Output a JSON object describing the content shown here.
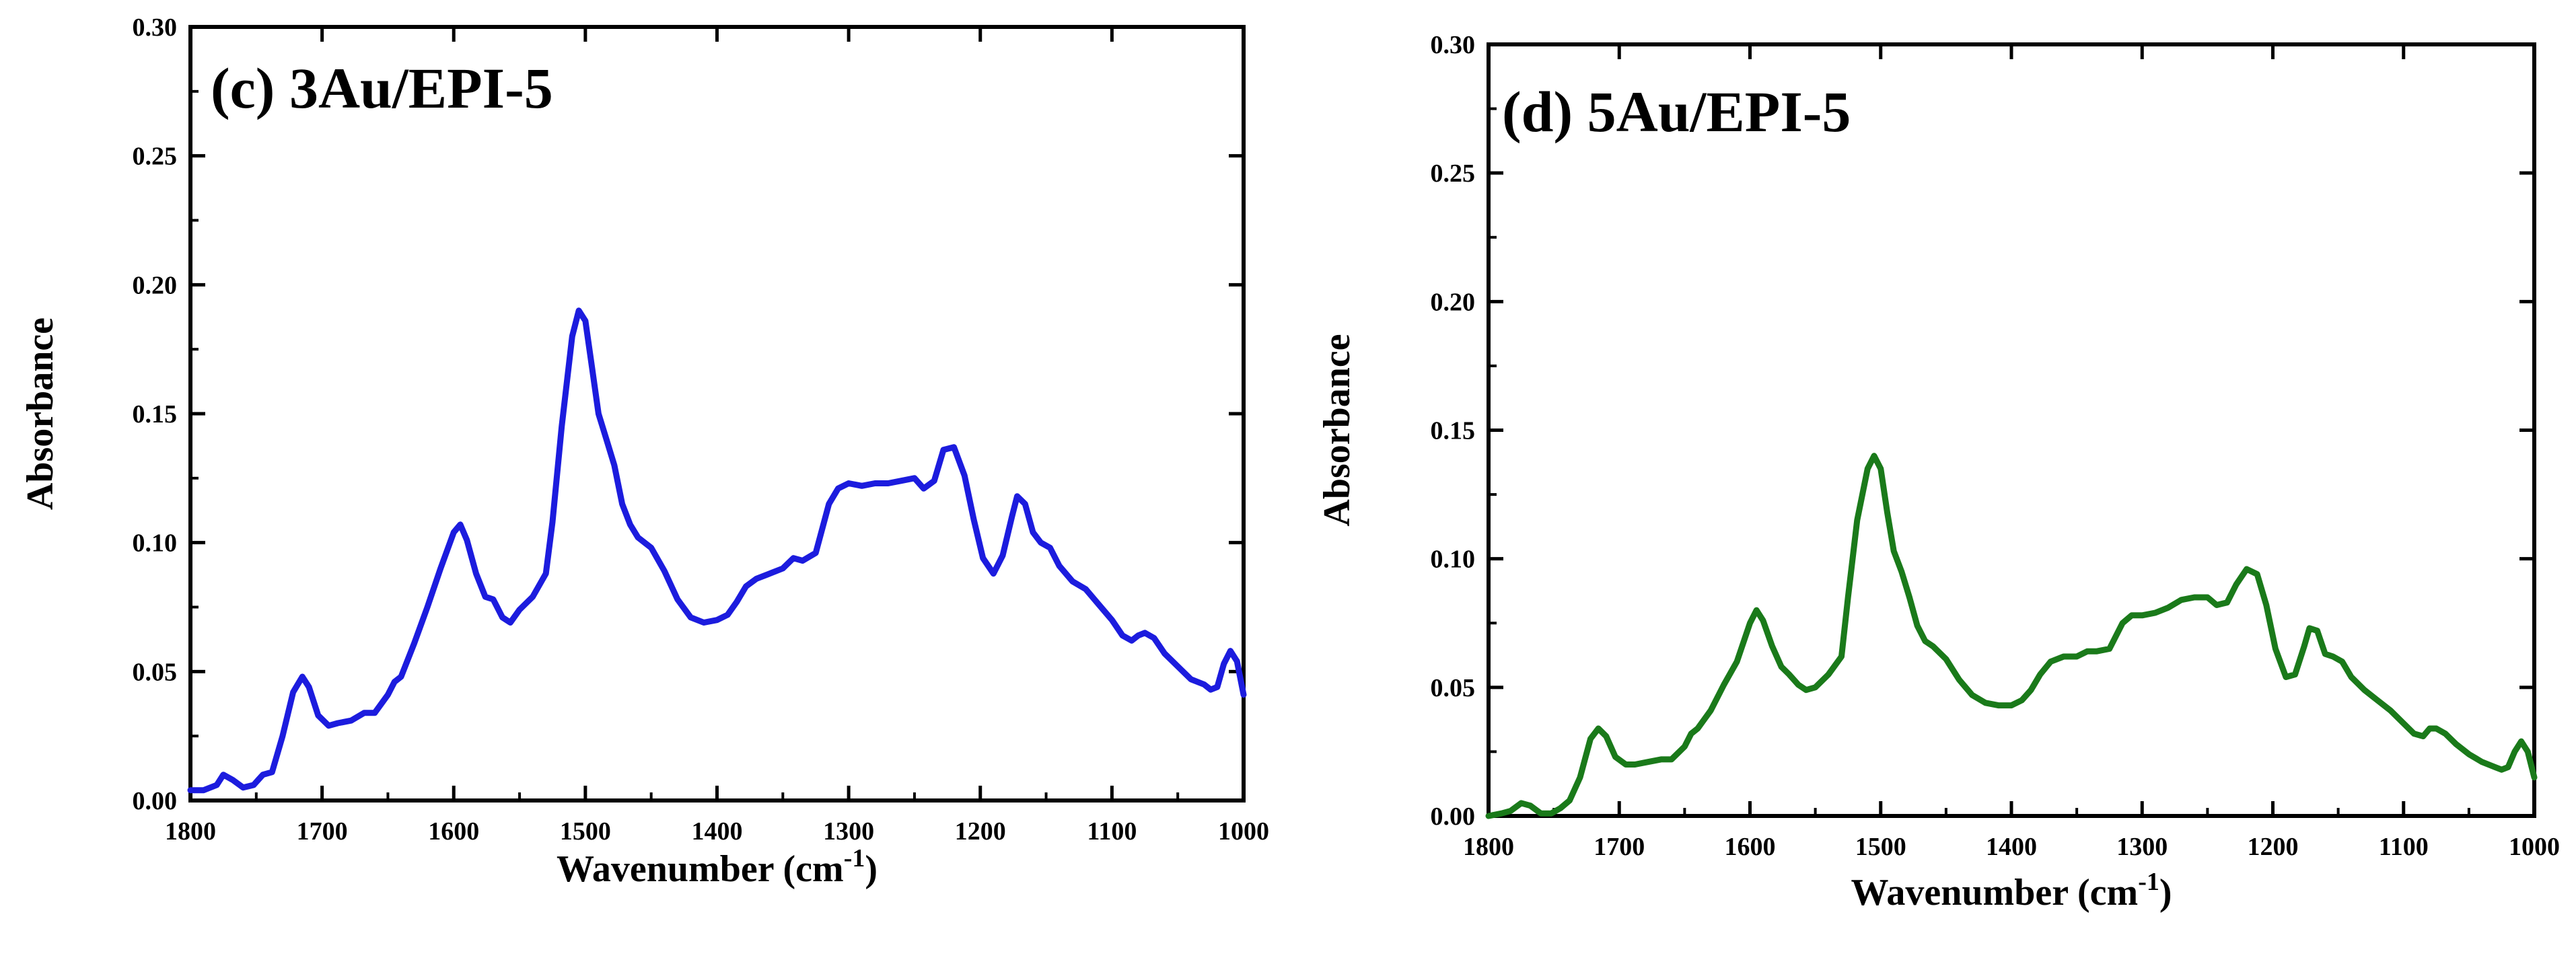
{
  "chart_data": [
    {
      "type": "line",
      "panel": "c",
      "title": "(c) 3Au/EPI-5",
      "xlabel": "Wavenumber",
      "xlabel_unit": "(cm-1)",
      "ylabel": "Absorbance",
      "xlim": [
        1800,
        1000
      ],
      "ylim": [
        0,
        0.3
      ],
      "xticks": [
        "1800",
        "1700",
        "1600",
        "1500",
        "1400",
        "1300",
        "1200",
        "1100",
        "1000"
      ],
      "yticks": [
        "0.00",
        "0.05",
        "0.10",
        "0.15",
        "0.20",
        "0.25",
        "0.30"
      ],
      "color": "#1c1cde",
      "series": [
        {
          "name": "3Au/EPI-5",
          "x": [
            1800,
            1790,
            1780,
            1775,
            1768,
            1760,
            1752,
            1745,
            1738,
            1730,
            1722,
            1715,
            1710,
            1703,
            1695,
            1688,
            1678,
            1668,
            1660,
            1650,
            1645,
            1640,
            1630,
            1620,
            1610,
            1600,
            1595,
            1590,
            1583,
            1576,
            1570,
            1563,
            1557,
            1550,
            1540,
            1530,
            1525,
            1518,
            1510,
            1505,
            1500,
            1495,
            1490,
            1484,
            1478,
            1472,
            1466,
            1460,
            1450,
            1440,
            1430,
            1420,
            1410,
            1400,
            1392,
            1385,
            1378,
            1370,
            1360,
            1350,
            1342,
            1335,
            1325,
            1315,
            1308,
            1300,
            1290,
            1280,
            1270,
            1260,
            1250,
            1243,
            1235,
            1228,
            1220,
            1212,
            1205,
            1198,
            1190,
            1183,
            1176,
            1172,
            1166,
            1160,
            1154,
            1147,
            1140,
            1130,
            1120,
            1110,
            1100,
            1092,
            1085,
            1080,
            1075,
            1068,
            1060,
            1050,
            1040,
            1030,
            1025,
            1020,
            1015,
            1010,
            1005,
            1000
          ],
          "values": [
            0.004,
            0.004,
            0.006,
            0.01,
            0.008,
            0.005,
            0.006,
            0.01,
            0.011,
            0.025,
            0.042,
            0.048,
            0.044,
            0.033,
            0.029,
            0.03,
            0.031,
            0.034,
            0.034,
            0.041,
            0.046,
            0.048,
            0.061,
            0.075,
            0.09,
            0.104,
            0.107,
            0.101,
            0.088,
            0.079,
            0.078,
            0.071,
            0.069,
            0.074,
            0.079,
            0.088,
            0.108,
            0.145,
            0.18,
            0.19,
            0.186,
            0.168,
            0.15,
            0.14,
            0.13,
            0.115,
            0.107,
            0.102,
            0.098,
            0.089,
            0.078,
            0.071,
            0.069,
            0.07,
            0.072,
            0.077,
            0.083,
            0.086,
            0.088,
            0.09,
            0.094,
            0.093,
            0.096,
            0.115,
            0.121,
            0.123,
            0.122,
            0.123,
            0.123,
            0.124,
            0.125,
            0.121,
            0.124,
            0.136,
            0.137,
            0.126,
            0.109,
            0.094,
            0.088,
            0.095,
            0.11,
            0.118,
            0.115,
            0.104,
            0.1,
            0.098,
            0.091,
            0.085,
            0.082,
            0.076,
            0.07,
            0.064,
            0.062,
            0.064,
            0.065,
            0.063,
            0.057,
            0.052,
            0.047,
            0.045,
            0.043,
            0.044,
            0.053,
            0.058,
            0.054,
            0.041
          ]
        }
      ]
    },
    {
      "type": "line",
      "panel": "d",
      "title": "(d) 5Au/EPI-5",
      "xlabel": "Wavenumber",
      "xlabel_unit": "(cm-1)",
      "ylabel": "Absorbance",
      "xlim": [
        1800,
        1000
      ],
      "ylim": [
        0,
        0.3
      ],
      "xticks": [
        "1800",
        "1700",
        "1600",
        "1500",
        "1400",
        "1300",
        "1200",
        "1100",
        "1000"
      ],
      "yticks": [
        "0.00",
        "0.05",
        "0.10",
        "0.15",
        "0.20",
        "0.25",
        "0.30"
      ],
      "color": "#1a7a1a",
      "series": [
        {
          "name": "5Au/EPI-5",
          "x": [
            1800,
            1790,
            1783,
            1775,
            1768,
            1760,
            1752,
            1745,
            1738,
            1730,
            1722,
            1716,
            1710,
            1703,
            1695,
            1688,
            1678,
            1668,
            1660,
            1650,
            1645,
            1640,
            1630,
            1620,
            1610,
            1600,
            1595,
            1590,
            1583,
            1576,
            1570,
            1563,
            1557,
            1550,
            1540,
            1530,
            1525,
            1518,
            1510,
            1505,
            1500,
            1495,
            1490,
            1484,
            1478,
            1472,
            1466,
            1460,
            1450,
            1440,
            1430,
            1420,
            1410,
            1400,
            1392,
            1385,
            1378,
            1370,
            1360,
            1350,
            1342,
            1335,
            1325,
            1315,
            1308,
            1300,
            1290,
            1280,
            1270,
            1260,
            1250,
            1243,
            1235,
            1228,
            1220,
            1212,
            1205,
            1198,
            1190,
            1183,
            1176,
            1172,
            1166,
            1160,
            1154,
            1147,
            1140,
            1130,
            1120,
            1110,
            1100,
            1092,
            1085,
            1080,
            1075,
            1068,
            1060,
            1050,
            1040,
            1030,
            1025,
            1020,
            1015,
            1010,
            1005,
            1000
          ],
          "values": [
            0.0,
            0.001,
            0.002,
            0.005,
            0.004,
            0.001,
            0.001,
            0.003,
            0.006,
            0.015,
            0.03,
            0.034,
            0.031,
            0.023,
            0.02,
            0.02,
            0.021,
            0.022,
            0.022,
            0.027,
            0.032,
            0.034,
            0.041,
            0.051,
            0.06,
            0.075,
            0.08,
            0.076,
            0.066,
            0.058,
            0.055,
            0.051,
            0.049,
            0.05,
            0.055,
            0.062,
            0.085,
            0.115,
            0.135,
            0.14,
            0.135,
            0.118,
            0.103,
            0.095,
            0.085,
            0.074,
            0.068,
            0.066,
            0.061,
            0.053,
            0.047,
            0.044,
            0.043,
            0.043,
            0.045,
            0.049,
            0.055,
            0.06,
            0.062,
            0.062,
            0.064,
            0.064,
            0.065,
            0.075,
            0.078,
            0.078,
            0.079,
            0.081,
            0.084,
            0.085,
            0.085,
            0.082,
            0.083,
            0.09,
            0.096,
            0.094,
            0.082,
            0.065,
            0.054,
            0.055,
            0.066,
            0.073,
            0.072,
            0.063,
            0.062,
            0.06,
            0.054,
            0.049,
            0.045,
            0.041,
            0.036,
            0.032,
            0.031,
            0.034,
            0.034,
            0.032,
            0.028,
            0.024,
            0.021,
            0.019,
            0.018,
            0.019,
            0.025,
            0.029,
            0.025,
            0.015
          ]
        }
      ]
    }
  ]
}
